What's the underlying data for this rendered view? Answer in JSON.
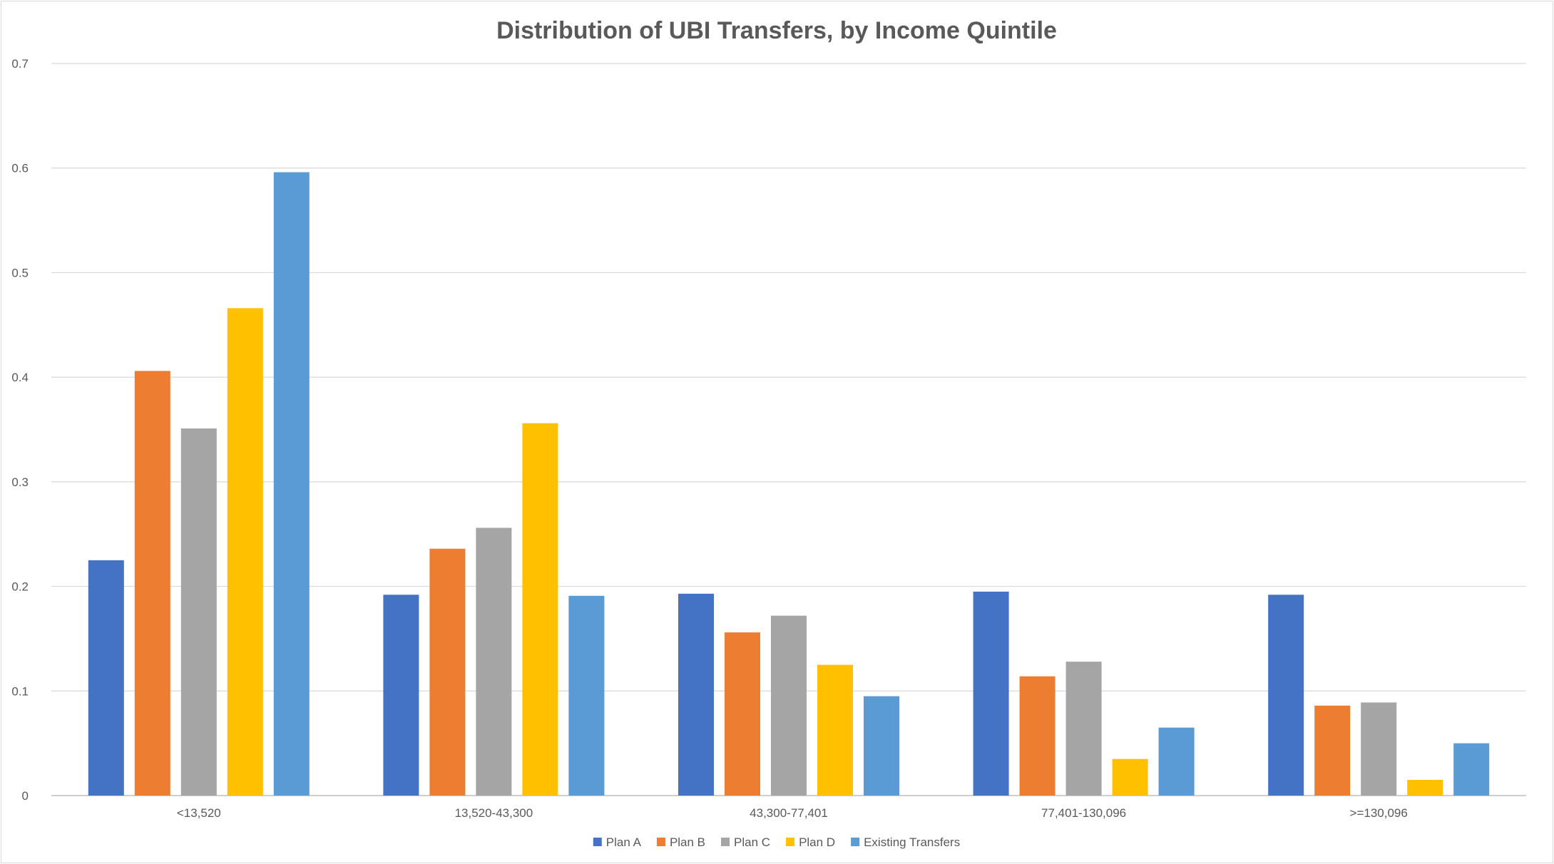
{
  "chart_data": {
    "type": "bar",
    "title": "Distribution of UBI Transfers, by Income Quintile",
    "xlabel": "",
    "ylabel": "",
    "ylim": [
      0,
      0.7
    ],
    "yticks": [
      "0",
      "0.1",
      "0.2",
      "0.3",
      "0.4",
      "0.5",
      "0.6",
      "0.7"
    ],
    "grid": true,
    "legend_position": "bottom",
    "categories": [
      "<13,520",
      "13,520-43,300",
      "43,300-77,401",
      "77,401-130,096",
      ">=130,096"
    ],
    "series": [
      {
        "name": "Plan A",
        "color": "#4472c4",
        "values": [
          0.225,
          0.192,
          0.193,
          0.195,
          0.192
        ]
      },
      {
        "name": "Plan B",
        "color": "#ed7d31",
        "values": [
          0.406,
          0.236,
          0.156,
          0.114,
          0.086
        ]
      },
      {
        "name": "Plan C",
        "color": "#a5a5a5",
        "values": [
          0.351,
          0.256,
          0.172,
          0.128,
          0.089
        ]
      },
      {
        "name": "Plan D",
        "color": "#ffc000",
        "values": [
          0.466,
          0.356,
          0.125,
          0.035,
          0.015
        ]
      },
      {
        "name": "Existing Transfers",
        "color": "#5b9bd5",
        "values": [
          0.596,
          0.191,
          0.095,
          0.065,
          0.05
        ]
      }
    ]
  }
}
